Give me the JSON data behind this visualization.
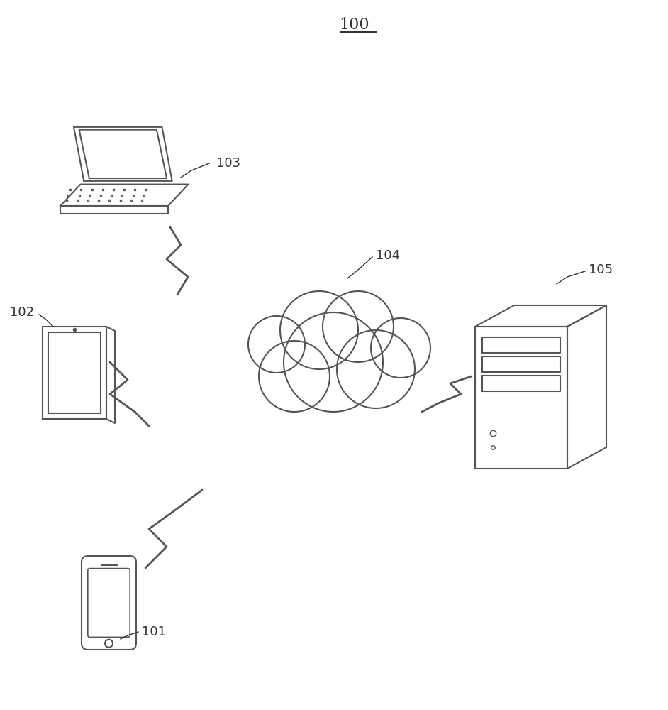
{
  "title": "100",
  "background_color": "#ffffff",
  "line_color": "#555555",
  "label_color": "#333333",
  "labels": {
    "title": "100",
    "laptop": "103",
    "tablet": "102",
    "phone": "101",
    "cloud": "104",
    "server": "105"
  },
  "figsize": [
    9.42,
    10.0
  ],
  "dpi": 100
}
